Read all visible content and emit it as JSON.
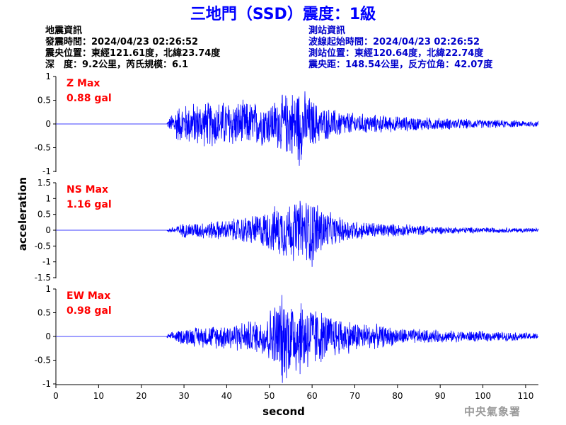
{
  "header": {
    "title": "三地門（SSD）震度：1級"
  },
  "quake_info": {
    "heading": "地震資訊",
    "time": "發震時間：2024/04/23 02:26:52",
    "epicenter": "震央位置：東經121.61度，北緯23.74度",
    "depth_magnitude": "深　度：9.2公里，芮氏規模：6.1"
  },
  "station_info": {
    "heading": "測站資訊",
    "wave_start": "波線起始時間：2024/04/23 02:26:52",
    "location": "測站位置：東經120.64度，北緯22.74度",
    "distance": "震央距：148.54公里，反方位角：42.07度"
  },
  "watermark": "中央氣象署",
  "colors": {
    "title": "#0000ff",
    "trace": "#0000ff",
    "annotation": "#ff0000",
    "station_text": "#0000cc"
  },
  "chart_data": {
    "type": "line",
    "xlabel": "second",
    "ylabel": "acceleration",
    "xlim": [
      0,
      113
    ],
    "xticks": [
      0,
      10,
      20,
      30,
      40,
      50,
      60,
      70,
      80,
      90,
      100,
      110
    ],
    "panels": [
      {
        "name": "Z",
        "annotation_label": "Z Max",
        "annotation_value": "0.88 gal",
        "max": 0.88,
        "ylim": [
          -1,
          1
        ],
        "yticks": [
          "1",
          "0.5",
          "0",
          "-0.5",
          "-1"
        ],
        "onset": 26,
        "envelope": [
          [
            26,
            0.05
          ],
          [
            28,
            0.4
          ],
          [
            32,
            0.5
          ],
          [
            40,
            0.55
          ],
          [
            50,
            0.5
          ],
          [
            57,
            0.88
          ],
          [
            62,
            0.4
          ],
          [
            70,
            0.25
          ],
          [
            80,
            0.18
          ],
          [
            90,
            0.14
          ],
          [
            100,
            0.1
          ],
          [
            113,
            0.07
          ]
        ]
      },
      {
        "name": "NS",
        "annotation_label": "NS Max",
        "annotation_value": "1.16 gal",
        "max": 1.16,
        "ylim": [
          -1.5,
          1.5
        ],
        "yticks": [
          "1.5",
          "1",
          "0.5",
          "0",
          "-0.5",
          "-1",
          "-1.5"
        ],
        "onset": 26,
        "envelope": [
          [
            26,
            0.05
          ],
          [
            30,
            0.25
          ],
          [
            40,
            0.35
          ],
          [
            48,
            0.6
          ],
          [
            54,
            1.0
          ],
          [
            60,
            1.16
          ],
          [
            65,
            0.5
          ],
          [
            72,
            0.3
          ],
          [
            82,
            0.2
          ],
          [
            92,
            0.12
          ],
          [
            100,
            0.1
          ],
          [
            113,
            0.07
          ]
        ]
      },
      {
        "name": "EW",
        "annotation_label": "EW Max",
        "annotation_value": "0.98 gal",
        "max": 0.98,
        "ylim": [
          -1,
          1
        ],
        "yticks": [
          "1",
          "0.5",
          "0",
          "-0.5",
          "-1"
        ],
        "onset": 26,
        "envelope": [
          [
            26,
            0.05
          ],
          [
            30,
            0.2
          ],
          [
            40,
            0.3
          ],
          [
            48,
            0.4
          ],
          [
            53,
            0.98
          ],
          [
            58,
            0.9
          ],
          [
            63,
            0.55
          ],
          [
            70,
            0.35
          ],
          [
            80,
            0.2
          ],
          [
            90,
            0.14
          ],
          [
            100,
            0.12
          ],
          [
            113,
            0.08
          ]
        ]
      }
    ]
  }
}
